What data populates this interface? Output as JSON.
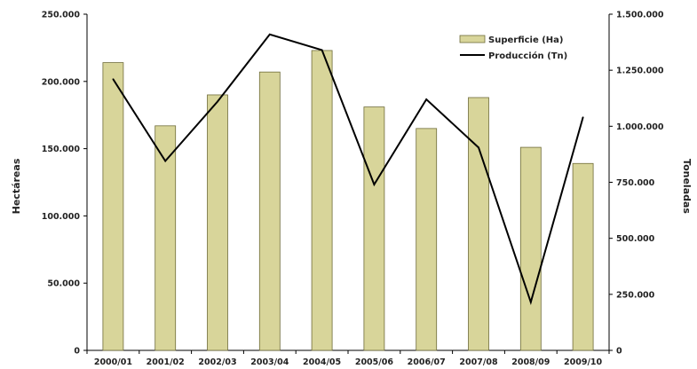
{
  "chart_data": {
    "type": "bar",
    "categories": [
      "2000/01",
      "2001/02",
      "2002/03",
      "2003/04",
      "2004/05",
      "2005/06",
      "2006/07",
      "2007/08",
      "2008/09",
      "2009/10"
    ],
    "series": [
      {
        "name": "Superficie (Ha)",
        "type": "bar",
        "axis": "left",
        "values": [
          214000,
          167000,
          190000,
          207000,
          223000,
          181000,
          165000,
          188000,
          151000,
          139000
        ]
      },
      {
        "name": "Producción (Tn)",
        "type": "line",
        "axis": "right",
        "values": [
          1210000,
          845000,
          1110000,
          1410000,
          1340000,
          740000,
          1120000,
          905000,
          215000,
          1040000
        ]
      }
    ],
    "ylabel": "Hectáreas",
    "ylabel_right": "Toneladas",
    "ylim": [
      0,
      250000
    ],
    "ylim_right": [
      0,
      1500000
    ],
    "yticks": [
      "0",
      "50.000",
      "100.000",
      "150.000",
      "200.000",
      "250.000"
    ],
    "yticks_right": [
      "0",
      "250.000",
      "500.000",
      "750.000",
      "1.000.000",
      "1.250.000",
      "1.500.000"
    ],
    "legend_position": "top-right",
    "colors": {
      "bar_fill": "#d8d59a",
      "bar_stroke": "#6f6c3a",
      "line": "#000000"
    }
  }
}
